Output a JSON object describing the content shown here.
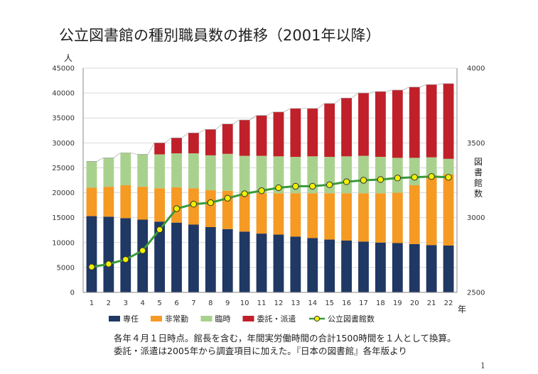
{
  "title": "公立図書館の種別職員数の推移（2001年以降）",
  "notes": [
    "各年４月１日時点。館長を含む，年間実労働時間の合計1500時間を１人として換算。",
    "委託・派遣は2005年から調査項目に加えた。『日本の図書館』各年版より"
  ],
  "page_number": "1",
  "chart_data": {
    "type": "bar",
    "stacked": true,
    "title": "公立図書館の種別職員数の推移（2001年以降）",
    "xlabel": "年",
    "ylabel": "人",
    "y2label": "図書館数",
    "ylim": [
      0,
      45000
    ],
    "y2lim": [
      2500,
      4000
    ],
    "yticks": [
      "0",
      "5000",
      "10000",
      "15000",
      "20000",
      "25000",
      "30000",
      "35000",
      "40000",
      "45000"
    ],
    "y2ticks": [
      "2500",
      "3000",
      "3500",
      "4000"
    ],
    "categories": [
      "1",
      "2",
      "3",
      "4",
      "5",
      "6",
      "7",
      "8",
      "9",
      "10",
      "11",
      "12",
      "13",
      "14",
      "15",
      "16",
      "17",
      "18",
      "19",
      "20",
      "21",
      "22"
    ],
    "series": [
      {
        "name": "専任",
        "color": "#1f3864",
        "values": [
          15300,
          15200,
          14900,
          14600,
          14200,
          14000,
          13600,
          13100,
          12700,
          12200,
          11800,
          11600,
          11200,
          10900,
          10600,
          10400,
          10200,
          10000,
          9900,
          9700,
          9500,
          9400
        ]
      },
      {
        "name": "非常勤",
        "color": "#f59a23",
        "values": [
          5700,
          6000,
          6600,
          6600,
          6700,
          7100,
          7300,
          7400,
          7700,
          7700,
          8100,
          8300,
          8700,
          9000,
          9300,
          9500,
          9700,
          9900,
          10100,
          11800,
          13700,
          14300
        ]
      },
      {
        "name": "臨時",
        "color": "#a9d18e",
        "values": [
          5300,
          5800,
          6500,
          6500,
          6800,
          6800,
          7000,
          7000,
          7400,
          7500,
          7500,
          7400,
          7300,
          7400,
          7300,
          7400,
          7500,
          7300,
          7000,
          5500,
          3900,
          3100
        ]
      },
      {
        "name": "委託・派遣",
        "color": "#c0202a",
        "values": [
          0,
          0,
          0,
          0,
          2300,
          3100,
          4100,
          5200,
          6000,
          7200,
          8100,
          8900,
          9700,
          9600,
          10700,
          11700,
          12600,
          13100,
          13600,
          14200,
          14600,
          15100
        ]
      }
    ],
    "line_series": {
      "name": "公立図書館数",
      "axis": "right",
      "color": "#3a9a3a",
      "marker_fill": "#f2ef00",
      "values": [
        2670,
        2690,
        2720,
        2780,
        2920,
        3060,
        3090,
        3100,
        3130,
        3160,
        3180,
        3200,
        3210,
        3210,
        3220,
        3240,
        3250,
        3255,
        3265,
        3270,
        3275,
        3270
      ]
    },
    "legend": [
      "専任",
      "非常勤",
      "臨時",
      "委託・派遣",
      "公立図書館数"
    ]
  }
}
